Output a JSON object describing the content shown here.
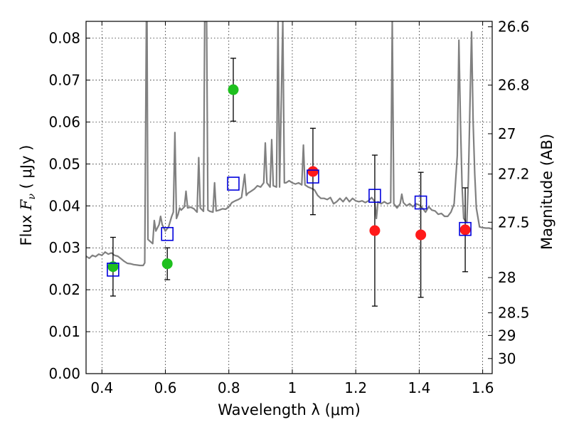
{
  "chart_data": {
    "type": "scatter",
    "xlabel": "Wavelength  λ (μm)",
    "ylabel": "Flux  F_ν  ( μJy )",
    "ylabel_parts": {
      "left": "Flux  ",
      "italic_F": "F",
      "sub_nu": "ν",
      "right": "  ( μJy )"
    },
    "y2label": "Magnitude (AB)",
    "xlim": [
      0.35,
      1.63
    ],
    "ylim": [
      0.0,
      0.084
    ],
    "grid": true,
    "x_ticks": [
      0.4,
      0.6,
      0.8,
      1.0,
      1.2,
      1.4,
      1.6
    ],
    "x_tick_labels": [
      "0.4",
      "0.6",
      "0.8",
      "1",
      "1.2",
      "1.4",
      "1.6"
    ],
    "y_ticks": [
      0.0,
      0.01,
      0.02,
      0.03,
      0.04,
      0.05,
      0.06,
      0.07,
      0.08
    ],
    "y_tick_labels": [
      "0.00",
      "0.01",
      "0.02",
      "0.03",
      "0.04",
      "0.05",
      "0.06",
      "0.07",
      "0.08"
    ],
    "y2_ticks": [
      {
        "label": "26.6",
        "flux": 0.0827
      },
      {
        "label": "26.8",
        "flux": 0.0688
      },
      {
        "label": "27",
        "flux": 0.0572
      },
      {
        "label": "27.2",
        "flux": 0.0476
      },
      {
        "label": "27.5",
        "flux": 0.0361
      },
      {
        "label": "28",
        "flux": 0.0229
      },
      {
        "label": "28.5",
        "flux": 0.0145
      },
      {
        "label": "29",
        "flux": 0.0091
      },
      {
        "label": "30",
        "flux": 0.0036
      }
    ],
    "series": [
      {
        "type": "line",
        "color": "#808080",
        "points": [
          [
            0.35,
            0.028
          ],
          [
            0.36,
            0.0275
          ],
          [
            0.37,
            0.0282
          ],
          [
            0.38,
            0.0279
          ],
          [
            0.39,
            0.0285
          ],
          [
            0.4,
            0.0282
          ],
          [
            0.41,
            0.029
          ],
          [
            0.42,
            0.0285
          ],
          [
            0.43,
            0.0288
          ],
          [
            0.44,
            0.0282
          ],
          [
            0.45,
            0.028
          ],
          [
            0.46,
            0.0274
          ],
          [
            0.47,
            0.0268
          ],
          [
            0.48,
            0.0263
          ],
          [
            0.49,
            0.0262
          ],
          [
            0.5,
            0.026
          ],
          [
            0.51,
            0.0259
          ],
          [
            0.52,
            0.0258
          ],
          [
            0.53,
            0.0258
          ],
          [
            0.535,
            0.0264
          ],
          [
            0.54,
            0.084
          ],
          [
            0.542,
            0.084
          ],
          [
            0.545,
            0.032
          ],
          [
            0.56,
            0.031
          ],
          [
            0.565,
            0.0365
          ],
          [
            0.57,
            0.034
          ],
          [
            0.58,
            0.0355
          ],
          [
            0.585,
            0.0375
          ],
          [
            0.59,
            0.0355
          ],
          [
            0.6,
            0.034
          ],
          [
            0.61,
            0.035
          ],
          [
            0.62,
            0.0375
          ],
          [
            0.625,
            0.0385
          ],
          [
            0.63,
            0.0575
          ],
          [
            0.635,
            0.037
          ],
          [
            0.64,
            0.038
          ],
          [
            0.645,
            0.0395
          ],
          [
            0.65,
            0.039
          ],
          [
            0.66,
            0.0398
          ],
          [
            0.665,
            0.0435
          ],
          [
            0.67,
            0.0395
          ],
          [
            0.68,
            0.0397
          ],
          [
            0.69,
            0.0393
          ],
          [
            0.7,
            0.0385
          ],
          [
            0.705,
            0.0515
          ],
          [
            0.71,
            0.0395
          ],
          [
            0.72,
            0.0387
          ],
          [
            0.724,
            0.084
          ],
          [
            0.73,
            0.084
          ],
          [
            0.734,
            0.039
          ],
          [
            0.74,
            0.0387
          ],
          [
            0.75,
            0.0385
          ],
          [
            0.755,
            0.0455
          ],
          [
            0.76,
            0.0388
          ],
          [
            0.77,
            0.039
          ],
          [
            0.78,
            0.0393
          ],
          [
            0.79,
            0.0392
          ],
          [
            0.8,
            0.0398
          ],
          [
            0.81,
            0.0408
          ],
          [
            0.82,
            0.0412
          ],
          [
            0.83,
            0.0415
          ],
          [
            0.84,
            0.042
          ],
          [
            0.85,
            0.0475
          ],
          [
            0.855,
            0.0425
          ],
          [
            0.86,
            0.043
          ],
          [
            0.87,
            0.0435
          ],
          [
            0.88,
            0.044
          ],
          [
            0.89,
            0.0448
          ],
          [
            0.9,
            0.0445
          ],
          [
            0.91,
            0.0455
          ],
          [
            0.915,
            0.055
          ],
          [
            0.92,
            0.0455
          ],
          [
            0.93,
            0.0445
          ],
          [
            0.935,
            0.0558
          ],
          [
            0.94,
            0.0448
          ],
          [
            0.95,
            0.0445
          ],
          [
            0.955,
            0.084
          ],
          [
            0.96,
            0.0445
          ],
          [
            0.97,
            0.084
          ],
          [
            0.975,
            0.0455
          ],
          [
            0.98,
            0.0455
          ],
          [
            0.99,
            0.046
          ],
          [
            1.0,
            0.0455
          ],
          [
            1.01,
            0.0452
          ],
          [
            1.02,
            0.0455
          ],
          [
            1.03,
            0.045
          ],
          [
            1.035,
            0.0545
          ],
          [
            1.04,
            0.045
          ],
          [
            1.05,
            0.0445
          ],
          [
            1.06,
            0.0442
          ],
          [
            1.07,
            0.0438
          ],
          [
            1.08,
            0.0425
          ],
          [
            1.09,
            0.0418
          ],
          [
            1.1,
            0.0418
          ],
          [
            1.11,
            0.0415
          ],
          [
            1.12,
            0.042
          ],
          [
            1.13,
            0.0405
          ],
          [
            1.14,
            0.041
          ],
          [
            1.15,
            0.0418
          ],
          [
            1.16,
            0.041
          ],
          [
            1.17,
            0.042
          ],
          [
            1.18,
            0.041
          ],
          [
            1.19,
            0.0418
          ],
          [
            1.2,
            0.0412
          ],
          [
            1.21,
            0.041
          ],
          [
            1.22,
            0.0412
          ],
          [
            1.23,
            0.0408
          ],
          [
            1.24,
            0.0412
          ],
          [
            1.25,
            0.042
          ],
          [
            1.26,
            0.041
          ],
          [
            1.265,
            0.037
          ],
          [
            1.27,
            0.041
          ],
          [
            1.28,
            0.0405
          ],
          [
            1.29,
            0.041
          ],
          [
            1.3,
            0.0405
          ],
          [
            1.31,
            0.0408
          ],
          [
            1.315,
            0.084
          ],
          [
            1.32,
            0.0405
          ],
          [
            1.33,
            0.0395
          ],
          [
            1.34,
            0.0405
          ],
          [
            1.345,
            0.0428
          ],
          [
            1.35,
            0.0408
          ],
          [
            1.36,
            0.04
          ],
          [
            1.37,
            0.0405
          ],
          [
            1.38,
            0.0398
          ],
          [
            1.39,
            0.0405
          ],
          [
            1.4,
            0.0402
          ],
          [
            1.41,
            0.0395
          ],
          [
            1.42,
            0.0385
          ],
          [
            1.43,
            0.0398
          ],
          [
            1.44,
            0.039
          ],
          [
            1.45,
            0.0388
          ],
          [
            1.46,
            0.038
          ],
          [
            1.47,
            0.0382
          ],
          [
            1.48,
            0.0375
          ],
          [
            1.49,
            0.0375
          ],
          [
            1.5,
            0.0385
          ],
          [
            1.51,
            0.0405
          ],
          [
            1.52,
            0.052
          ],
          [
            1.525,
            0.0795
          ],
          [
            1.53,
            0.06
          ],
          [
            1.535,
            0.045
          ],
          [
            1.54,
            0.037
          ],
          [
            1.55,
            0.036
          ],
          [
            1.555,
            0.046
          ],
          [
            1.56,
            0.0645
          ],
          [
            1.565,
            0.0815
          ],
          [
            1.57,
            0.06
          ],
          [
            1.575,
            0.0475
          ],
          [
            1.58,
            0.0395
          ],
          [
            1.59,
            0.035
          ],
          [
            1.6,
            0.0348
          ],
          [
            1.61,
            0.0347
          ],
          [
            1.62,
            0.0347
          ],
          [
            1.63,
            0.0345
          ]
        ]
      },
      {
        "type": "scatter",
        "marker": "circle",
        "color": "#1ec01e",
        "points": [
          {
            "x": 0.435,
            "y": 0.0255,
            "err": 0.007
          },
          {
            "x": 0.606,
            "y": 0.0262,
            "err": 0.0038
          },
          {
            "x": 0.814,
            "y": 0.0677,
            "err": 0.0075
          }
        ]
      },
      {
        "type": "scatter",
        "marker": "circle",
        "color": "#ff1a1a",
        "points": [
          {
            "x": 1.065,
            "y": 0.0482,
            "err": 0.0103
          },
          {
            "x": 1.26,
            "y": 0.0341,
            "err": 0.018
          },
          {
            "x": 1.405,
            "y": 0.0331,
            "err": 0.0149
          },
          {
            "x": 1.545,
            "y": 0.0343,
            "err": 0.01
          }
        ]
      },
      {
        "type": "scatter",
        "marker": "square-open",
        "color": "#0000dd",
        "points": [
          {
            "x": 0.435,
            "y": 0.0248
          },
          {
            "x": 0.606,
            "y": 0.0333
          },
          {
            "x": 0.814,
            "y": 0.0453
          },
          {
            "x": 1.065,
            "y": 0.047
          },
          {
            "x": 1.26,
            "y": 0.0424
          },
          {
            "x": 1.405,
            "y": 0.0408
          },
          {
            "x": 1.545,
            "y": 0.0345
          }
        ]
      }
    ]
  }
}
